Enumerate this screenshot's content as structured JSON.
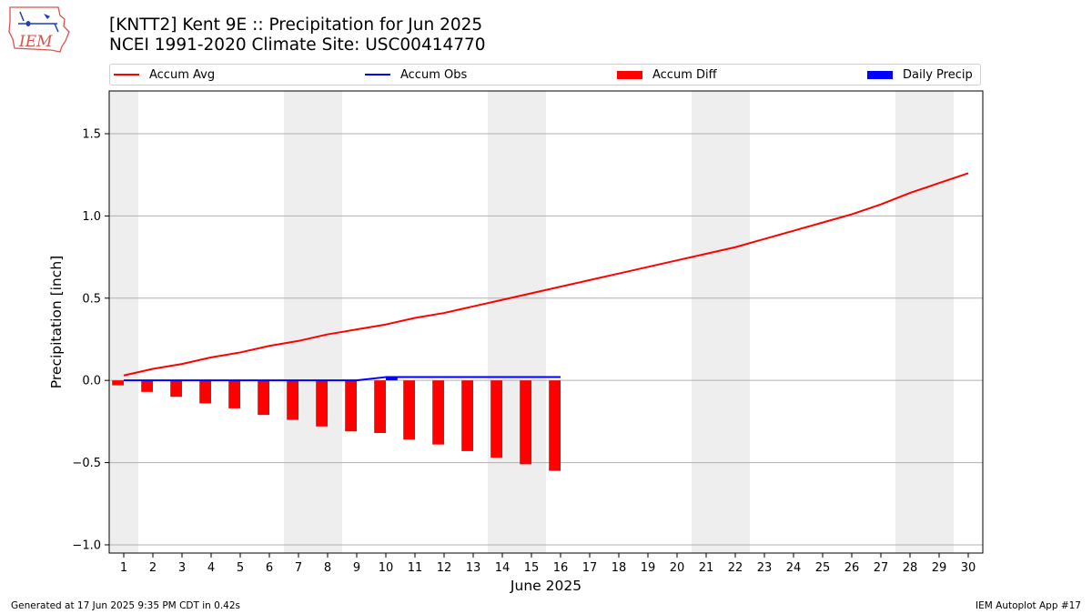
{
  "header": {
    "title_line1": "[KNTT2] Kent 9E :: Precipitation for Jun 2025",
    "title_line2": "NCEI 1991-2020 Climate Site: USC00414770"
  },
  "logo": {
    "text": "IEM",
    "icon": "iem-logo-icon"
  },
  "footer": {
    "left": "Generated at 17 Jun 2025 9:35 PM CDT in 0.42s",
    "right": "IEM Autoplot App #17"
  },
  "chart_data": {
    "type": "line",
    "xlabel": "June 2025",
    "ylabel": "Precipitation [inch]",
    "x": [
      1,
      2,
      3,
      4,
      5,
      6,
      7,
      8,
      9,
      10,
      11,
      12,
      13,
      14,
      15,
      16,
      17,
      18,
      19,
      20,
      21,
      22,
      23,
      24,
      25,
      26,
      27,
      28,
      29,
      30
    ],
    "xlim": [
      0.5,
      30.5
    ],
    "ylim": [
      -1.05,
      1.76
    ],
    "yticks": [
      -1.0,
      -0.5,
      0.0,
      0.5,
      1.0,
      1.5
    ],
    "ytick_labels": [
      "−1.0",
      "−0.5",
      "0.0",
      "0.5",
      "1.0",
      "1.5"
    ],
    "grid": "horizontal",
    "legend_position": "top",
    "weekend_shading": [
      [
        0.5,
        1.5
      ],
      [
        6.5,
        8.5
      ],
      [
        13.5,
        15.5
      ],
      [
        20.5,
        22.5
      ],
      [
        27.5,
        29.5
      ]
    ],
    "series": [
      {
        "name": "Accum Avg",
        "type": "line",
        "color": "#ff0000",
        "x": [
          1,
          2,
          3,
          4,
          5,
          6,
          7,
          8,
          9,
          10,
          11,
          12,
          13,
          14,
          15,
          16,
          17,
          18,
          19,
          20,
          21,
          22,
          23,
          24,
          25,
          26,
          27,
          28,
          29,
          30
        ],
        "values": [
          0.03,
          0.07,
          0.1,
          0.14,
          0.17,
          0.21,
          0.24,
          0.28,
          0.31,
          0.34,
          0.38,
          0.41,
          0.45,
          0.49,
          0.53,
          0.57,
          0.61,
          0.65,
          0.69,
          0.73,
          0.77,
          0.81,
          0.86,
          0.91,
          0.96,
          1.01,
          1.07,
          1.14,
          1.2,
          1.26
        ]
      },
      {
        "name": "Accum Obs",
        "type": "line",
        "color": "#0000ff",
        "x": [
          1,
          2,
          3,
          4,
          5,
          6,
          7,
          8,
          9,
          10,
          11,
          12,
          13,
          14,
          15,
          16
        ],
        "values": [
          0.0,
          0.0,
          0.0,
          0.0,
          0.0,
          0.0,
          0.0,
          0.0,
          0.0,
          0.02,
          0.02,
          0.02,
          0.02,
          0.02,
          0.02,
          0.02
        ]
      },
      {
        "name": "Accum Diff",
        "type": "bar",
        "color": "#ff0000",
        "x": [
          1,
          2,
          3,
          4,
          5,
          6,
          7,
          8,
          9,
          10,
          11,
          12,
          13,
          14,
          15,
          16
        ],
        "values": [
          -0.03,
          -0.07,
          -0.1,
          -0.14,
          -0.17,
          -0.21,
          -0.24,
          -0.28,
          -0.31,
          -0.32,
          -0.36,
          -0.39,
          -0.43,
          -0.47,
          -0.51,
          -0.55
        ]
      },
      {
        "name": "Daily Precip",
        "type": "bar",
        "color": "#0000ff",
        "x": [
          1,
          2,
          3,
          4,
          5,
          6,
          7,
          8,
          9,
          10,
          11,
          12,
          13,
          14,
          15,
          16
        ],
        "values": [
          0,
          0,
          0,
          0,
          0,
          0,
          0,
          0,
          0,
          0.02,
          0,
          0,
          0,
          0,
          0,
          0
        ]
      }
    ]
  }
}
